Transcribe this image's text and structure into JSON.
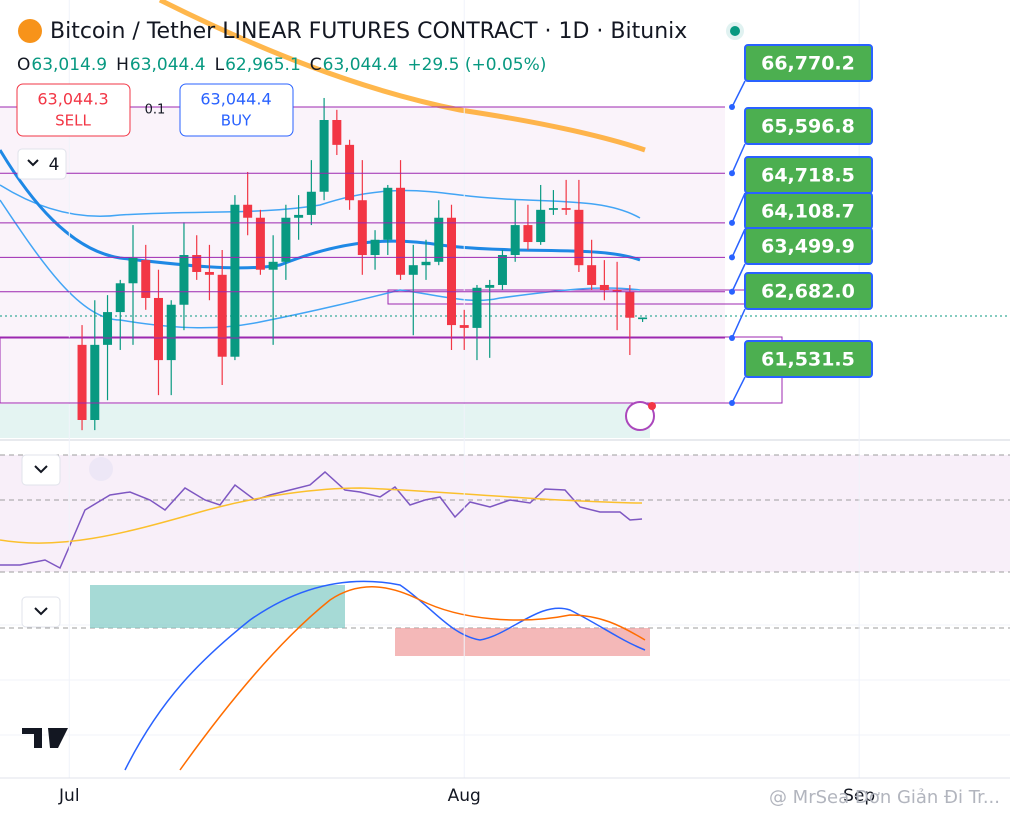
{
  "header": {
    "title": "Bitcoin / Tether LINEAR FUTURES CONTRACT · 1D · Bitunix",
    "ohlc": [
      {
        "key": "O",
        "text": "63,014.9"
      },
      {
        "key": "H",
        "text": "63,044.4"
      },
      {
        "key": "L",
        "text": "62,965.1"
      },
      {
        "key": "C",
        "text": "63,044.4"
      }
    ],
    "change": "+29.5 (+0.05%)"
  },
  "trade": {
    "sell_price": "63,044.3",
    "sell_label": "SELL",
    "spread": "0.1",
    "buy_price": "63,044.4",
    "buy_label": "BUY"
  },
  "indicators_count": "4",
  "watermark": "@ MrSea Đơn Giản Đi Tr...",
  "chart_data": {
    "type": "candlestick",
    "x": [
      0,
      1,
      2,
      3,
      4,
      5,
      6,
      7,
      8,
      9,
      10,
      11,
      12,
      13,
      14,
      15,
      16,
      17,
      18,
      19,
      20,
      21,
      22,
      23,
      24,
      25,
      26,
      27,
      28,
      29,
      30,
      31,
      32,
      33,
      34,
      35,
      36,
      37,
      38,
      39,
      40,
      41,
      42,
      43,
      44
    ],
    "candles": {
      "open": [
        62560,
        61230,
        62560,
        63140,
        63650,
        64060,
        63390,
        62290,
        63270,
        64150,
        63850,
        63800,
        62350,
        65040,
        64810,
        63890,
        64030,
        64810,
        64860,
        65270,
        66540,
        66100,
        65120,
        64150,
        64420,
        65340,
        63800,
        63970,
        64030,
        64810,
        62910,
        62860,
        63570,
        63620,
        64150,
        64680,
        64380,
        64950,
        64980,
        64950,
        63970,
        63620,
        63530,
        63500,
        63014.9
      ],
      "high": [
        62910,
        63350,
        63440,
        63710,
        64680,
        64330,
        63890,
        63350,
        64730,
        64500,
        64330,
        64240,
        65210,
        65620,
        64950,
        64500,
        65040,
        65210,
        65830,
        66930,
        66720,
        66190,
        65830,
        64590,
        65390,
        65830,
        64330,
        64420,
        65120,
        65040,
        63180,
        63620,
        63710,
        64240,
        65120,
        65040,
        65390,
        65300,
        65480,
        65480,
        64420,
        64060,
        64030,
        63620,
        63044.4
      ],
      "low": [
        61050,
        61050,
        61580,
        62470,
        62560,
        63180,
        61670,
        61670,
        62820,
        63710,
        63350,
        61850,
        62290,
        64500,
        63800,
        62560,
        63710,
        64420,
        64680,
        65120,
        65920,
        64950,
        63800,
        63890,
        64150,
        63710,
        62730,
        63710,
        63970,
        62470,
        62470,
        62290,
        62330,
        63530,
        64030,
        64240,
        64330,
        64860,
        64860,
        63850,
        63530,
        63350,
        62820,
        62380,
        62965.1
      ],
      "close": [
        61230,
        62560,
        63140,
        63650,
        64100,
        63390,
        62290,
        63270,
        64150,
        63850,
        63800,
        62350,
        65040,
        64810,
        63890,
        64030,
        64810,
        64860,
        65270,
        66540,
        66100,
        65120,
        64150,
        64420,
        65340,
        63800,
        63970,
        64030,
        64810,
        62910,
        62860,
        63570,
        63620,
        64150,
        64680,
        64380,
        64950,
        64980,
        64950,
        63970,
        63620,
        63530,
        63500,
        63040,
        63044.4
      ]
    },
    "up_color": "#089981",
    "down_color": "#f23645",
    "xlim": [
      -6.44,
      72.84
    ],
    "ylim": [
      60929,
      68664
    ],
    "xticks": [
      {
        "value": -1,
        "label": "Jul"
      },
      {
        "value": 30,
        "label": "Aug"
      },
      {
        "value": 61,
        "label": "Sep"
      }
    ],
    "levels": [
      {
        "value": 66770.2,
        "label": "66,770.2"
      },
      {
        "value": 65596.8,
        "label": "65,596.8"
      },
      {
        "value": 64718.5,
        "label": "64,718.5"
      },
      {
        "value": 64108.7,
        "label": "64,108.7"
      },
      {
        "value": 63499.9,
        "label": "63,499.9"
      },
      {
        "value": 62682.0,
        "label": "62,682.0"
      },
      {
        "value": 61531.5,
        "label": "61,531.5"
      }
    ],
    "level_color": "#9c27b0",
    "label_color": "#4caf50"
  }
}
